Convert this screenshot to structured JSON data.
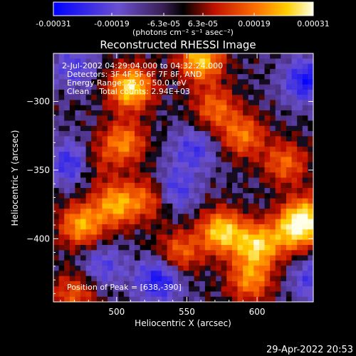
{
  "chart_data": {
    "type": "heatmap",
    "title": "Reconstructed RHESSI Image",
    "xlabel": "Heliocentric X (arcsec)",
    "ylabel": "Heliocentric Y (arcsec)",
    "xlim": [
      455,
      640
    ],
    "ylim": [
      -446,
      -265
    ],
    "x_ticks": [
      500,
      550,
      600
    ],
    "y_ticks": [
      -300,
      -350,
      -400
    ],
    "x_tick_labels": [
      "500",
      "550",
      "600"
    ],
    "y_tick_labels": [
      "−300",
      "−350",
      "−400"
    ],
    "colorbar": {
      "range": [
        -0.00031,
        0.00031
      ],
      "tick_labels": [
        "-0.00031",
        "-0.00019",
        "-6.3e-05",
        "6.3e-05",
        "0.00019",
        "0.00031"
      ],
      "units_label": "(photons cm⁻² s⁻¹ asec⁻²)"
    },
    "annotations": [
      "2-Jul-2002 04:29:04.000 to 04:32:24.000",
      "Detectors: 3F 4F 5F 6F 7F 8F, AND",
      "Energy Range: 25.0 - 50.0 keV",
      "Clean    Total counts: 2.94E+03"
    ],
    "peak_label": "Position of Peak = [638,-390]",
    "peak": [
      638,
      -390
    ],
    "hotspots": [
      {
        "x": 510,
        "y": -290,
        "v": 0.9
      },
      {
        "x": 560,
        "y": -270,
        "v": 0.8
      },
      {
        "x": 505,
        "y": -330,
        "v": 0.6
      },
      {
        "x": 590,
        "y": -325,
        "v": 0.55
      },
      {
        "x": 570,
        "y": -305,
        "v": 0.5
      },
      {
        "x": 620,
        "y": -345,
        "v": 0.5
      },
      {
        "x": 480,
        "y": -345,
        "v": 0.45
      },
      {
        "x": 475,
        "y": -390,
        "v": 0.7
      },
      {
        "x": 500,
        "y": -375,
        "v": 0.7
      },
      {
        "x": 525,
        "y": -370,
        "v": 0.5
      },
      {
        "x": 575,
        "y": -395,
        "v": 0.85
      },
      {
        "x": 600,
        "y": -405,
        "v": 0.8
      },
      {
        "x": 625,
        "y": -395,
        "v": 0.6
      },
      {
        "x": 545,
        "y": -410,
        "v": 0.5
      },
      {
        "x": 595,
        "y": -430,
        "v": 0.6
      },
      {
        "x": 635,
        "y": -385,
        "v": 0.8
      },
      {
        "x": 470,
        "y": -440,
        "v": 0.45
      }
    ],
    "coldspots": [
      {
        "x": 470,
        "y": -345,
        "v": 0.7
      },
      {
        "x": 540,
        "y": -365,
        "v": 0.5
      },
      {
        "x": 635,
        "y": -285,
        "v": 0.6
      },
      {
        "x": 530,
        "y": -430,
        "v": 0.6
      },
      {
        "x": 555,
        "y": -335,
        "v": 0.4
      },
      {
        "x": 470,
        "y": -275,
        "v": 0.35
      },
      {
        "x": 640,
        "y": -430,
        "v": 0.4
      },
      {
        "x": 490,
        "y": -420,
        "v": 0.35
      }
    ]
  },
  "timestamp": "29-Apr-2022 20:53",
  "colors": {
    "background": "#000000",
    "foreground": "#ffffff"
  }
}
